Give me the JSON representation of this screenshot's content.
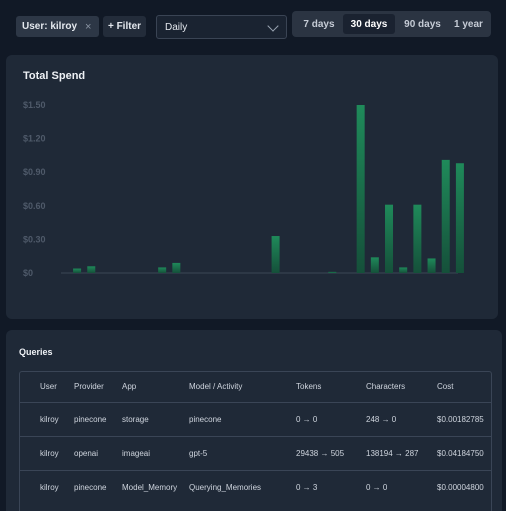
{
  "filters": {
    "user_chip_label": "User: kilroy",
    "user_chip_remove": "×",
    "add_filter_label": "+ Filter",
    "granularity": "Daily",
    "ranges": [
      "7 days",
      "30 days",
      "90 days",
      "1 year"
    ],
    "active_range": "30 days"
  },
  "chart_data": {
    "type": "bar",
    "title": "Total Spend",
    "xlabel": "",
    "ylabel": "",
    "ylim": [
      0,
      1.5
    ],
    "yticks": [
      "$1.50",
      "$1.20",
      "$0.90",
      "$0.60",
      "$0.30",
      "$0"
    ],
    "ytick_values": [
      1.5,
      1.2,
      0.9,
      0.6,
      0.3,
      0
    ],
    "grid": false,
    "legend": "none",
    "bar_color": "#1f7a52",
    "values": [
      0.04,
      0.06,
      0.0,
      0.0,
      0.0,
      0.0,
      0.05,
      0.09,
      0.0,
      0.0,
      0.0,
      0.0,
      0.0,
      0.0,
      0.33,
      0.0,
      0.0,
      0.0,
      0.01,
      0.0,
      1.5,
      0.14,
      0.61,
      0.05,
      0.61,
      0.13,
      1.01,
      0.98
    ]
  },
  "queries": {
    "title": "Queries",
    "columns": [
      "User",
      "Provider",
      "App",
      "Model / Activity",
      "Tokens",
      "Characters",
      "Cost"
    ],
    "rows": [
      [
        "kilroy",
        "pinecone",
        "storage",
        "pinecone",
        "0 → 0",
        "248 → 0",
        "$0.00182785"
      ],
      [
        "kilroy",
        "openai",
        "imageai",
        "gpt-5",
        "29438 → 505",
        "138194 → 287",
        "$0.04184750"
      ],
      [
        "kilroy",
        "pinecone",
        "Model_Memory",
        "Querying_Memories",
        "0 → 3",
        "0 → 0",
        "$0.00004800"
      ]
    ]
  }
}
